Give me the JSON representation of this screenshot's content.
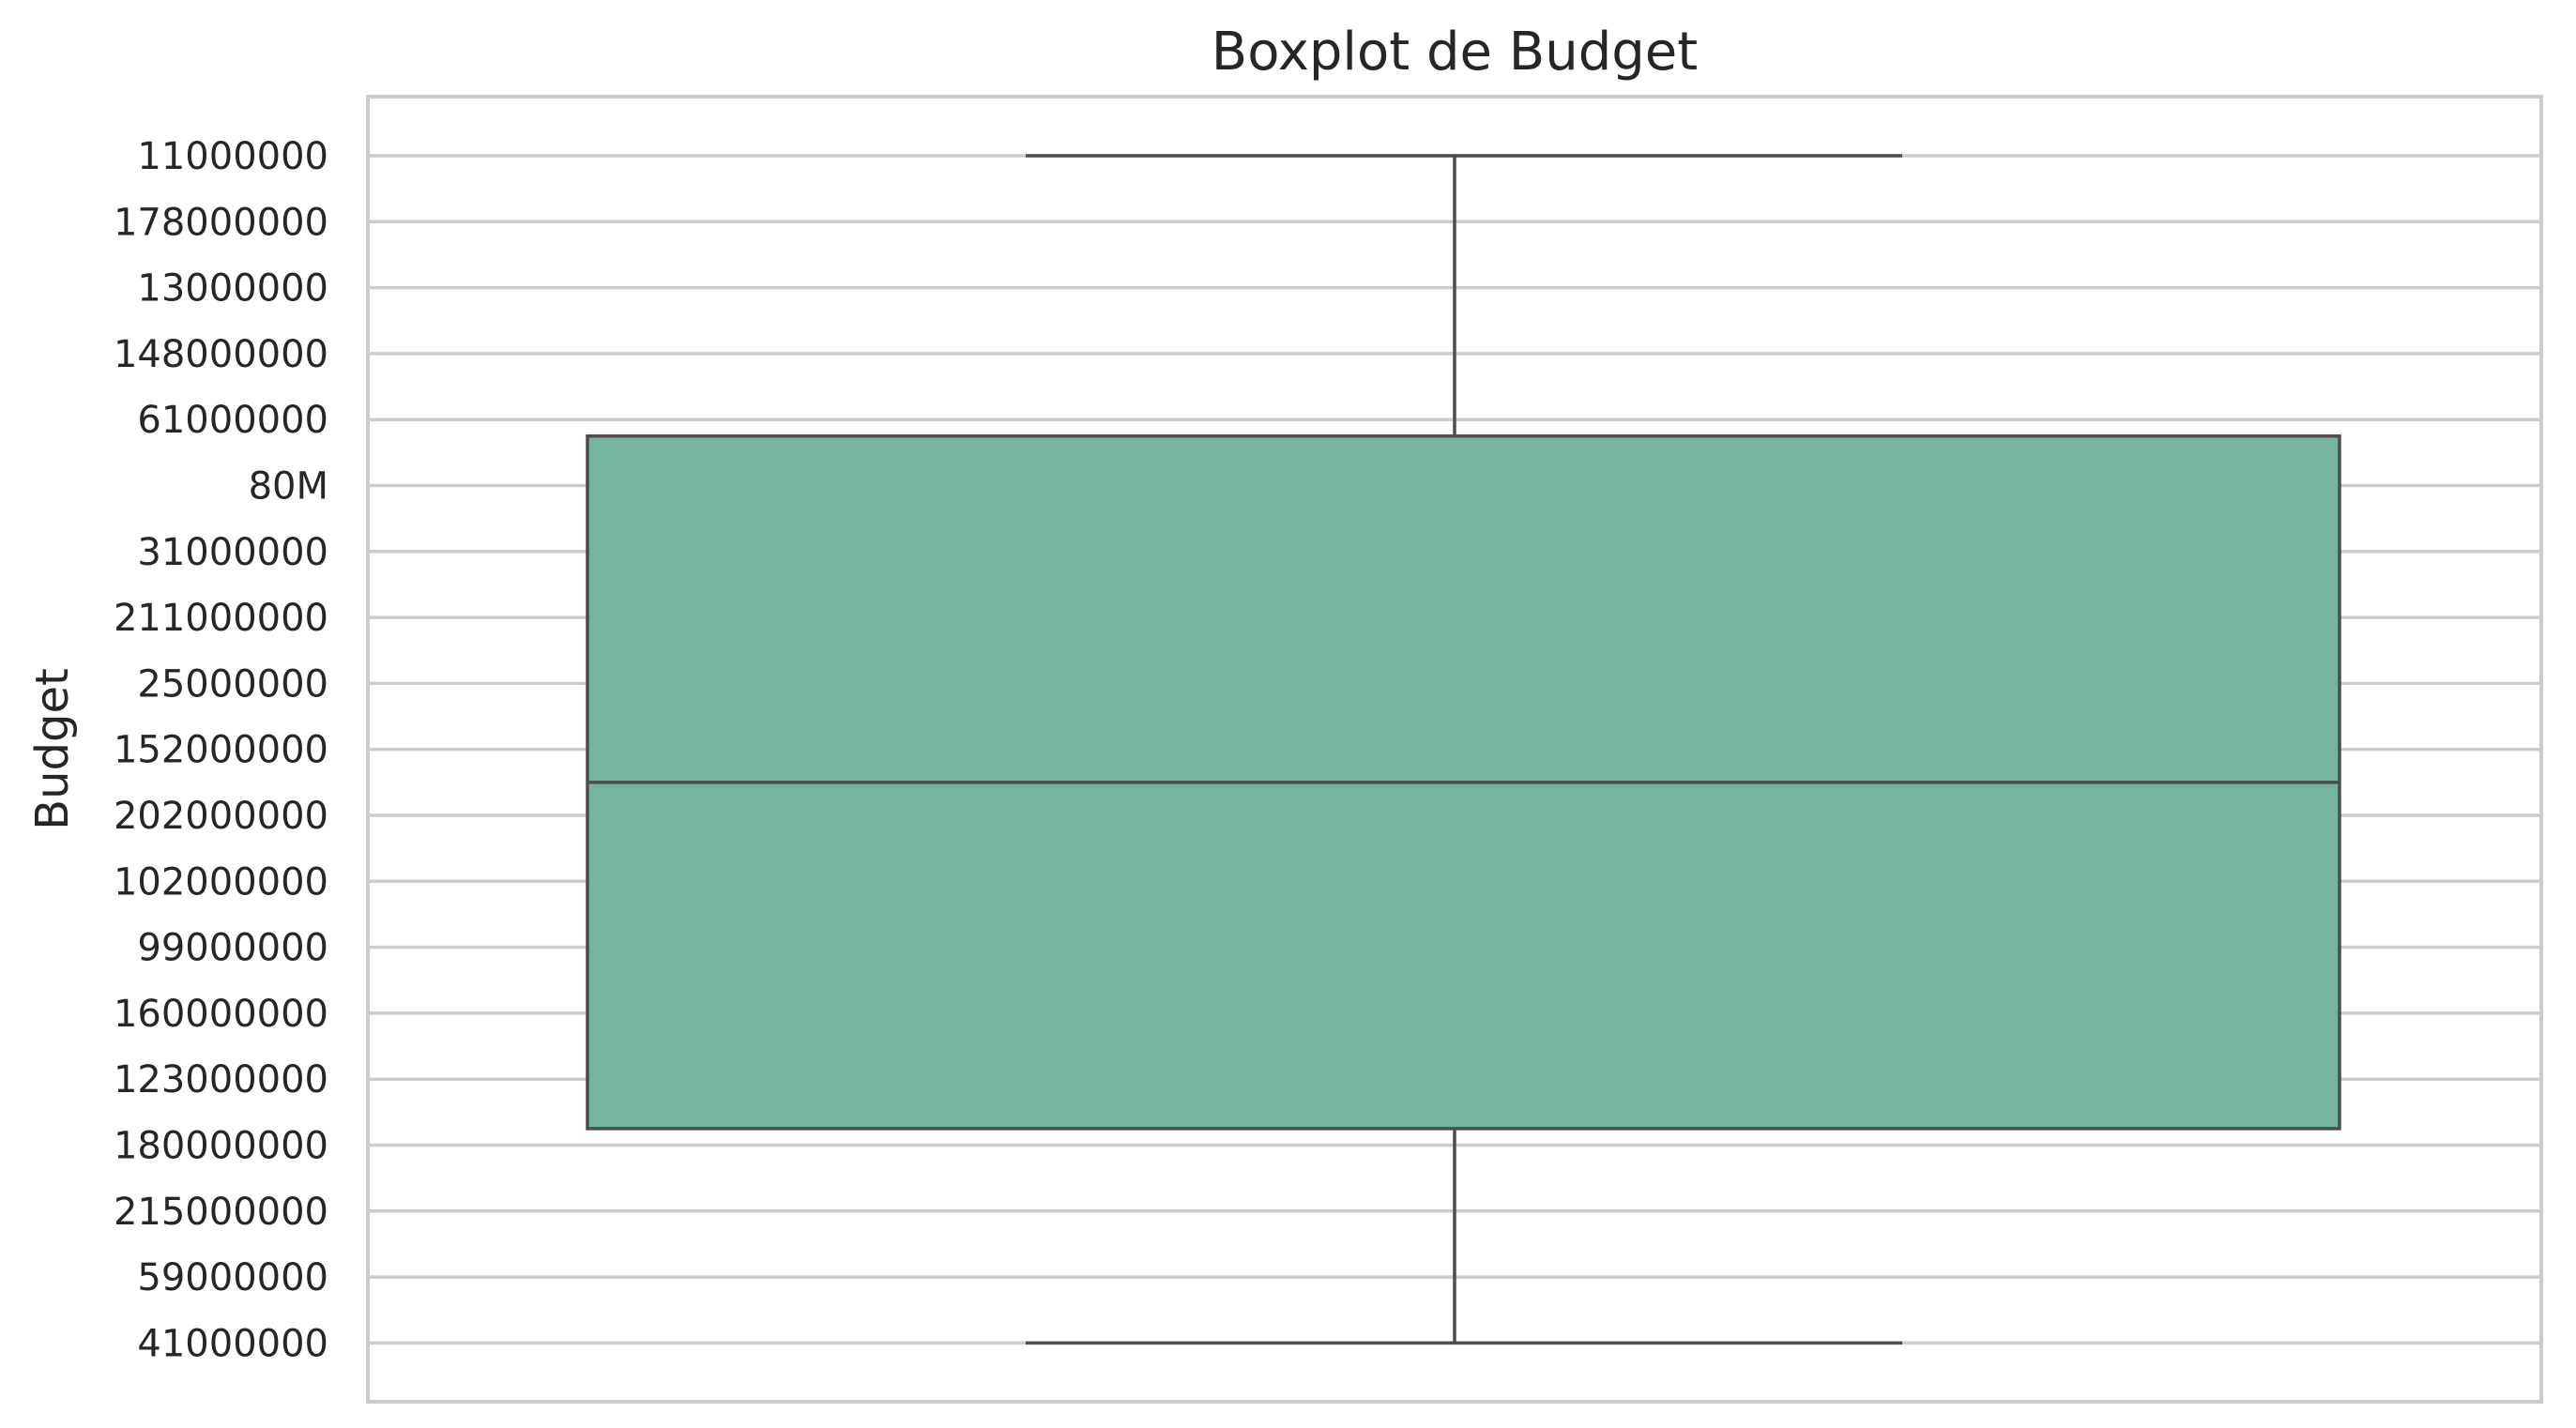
{
  "chart_data": {
    "type": "box",
    "title": "Boxplot de Budget",
    "xlabel": "",
    "ylabel": "Budget",
    "y_axis_kind": "categorical",
    "y_categories_top_to_bottom": [
      "11000000",
      "178000000",
      "13000000",
      "148000000",
      "61000000",
      "80M",
      "31000000",
      "211000000",
      "25000000",
      "152000000",
      "202000000",
      "102000000",
      "99000000",
      "160000000",
      "123000000",
      "180000000",
      "215000000",
      "59000000",
      "41000000"
    ],
    "box": {
      "whisker_low_category_index": 0,
      "q1_category_index": 4.25,
      "median_category_index": 9.5,
      "q3_category_index": 14.75,
      "whisker_high_category_index": 18,
      "color": "#75b5a0",
      "edge_color": "#4d4d4d"
    },
    "grid": true,
    "legend": "none"
  }
}
